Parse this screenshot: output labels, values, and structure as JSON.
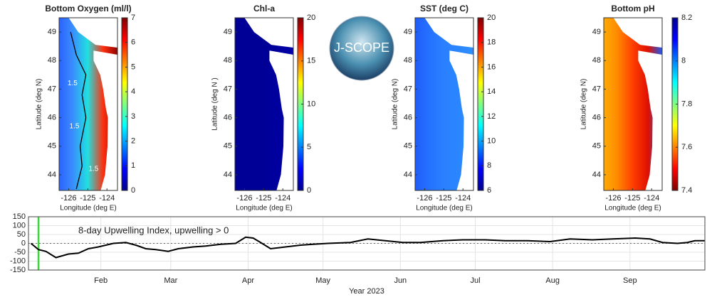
{
  "logo": {
    "text": "J-SCOPE"
  },
  "chart_data": [
    {
      "type": "map",
      "title": "Bottom Oxygen (ml/l)",
      "xlabel": "Longitude (deg E)",
      "ylabel": "Latitude (deg N)",
      "xlim": [
        -126.5,
        -123.45
      ],
      "ylim": [
        43.45,
        49.5
      ],
      "xticks": [
        -126,
        -125,
        -124
      ],
      "yticks": [
        44,
        45,
        46,
        47,
        48,
        49
      ],
      "colormap": "jet",
      "reverse": false,
      "clim": [
        0,
        7
      ],
      "cticks": [
        0,
        1,
        2,
        3,
        4,
        5,
        6,
        7
      ],
      "ocean": [
        "#2a5cff",
        "#3a8cff",
        "#20e0e0",
        "#ff3010",
        "#8a0000"
      ],
      "contour": {
        "value": 1.5
      }
    },
    {
      "type": "map",
      "title": "Chl-a",
      "xlabel": "Longitude (deg E)",
      "ylabel": "Latitude (deg N )",
      "xlim": [
        -126.5,
        -123.45
      ],
      "ylim": [
        43.45,
        49.5
      ],
      "xticks": [
        -126,
        -125,
        -124
      ],
      "yticks": [
        44,
        45,
        46,
        47,
        48,
        49
      ],
      "colormap": "jet",
      "reverse": false,
      "clim": [
        0,
        20
      ],
      "cticks": [
        0,
        5,
        10,
        15,
        20
      ],
      "ocean": [
        "#000096",
        "#000096",
        "#000096",
        "#0000a0",
        "#0000aa"
      ]
    },
    {
      "type": "map",
      "title": "SST (deg C)",
      "xlabel": "Longitude (deg E)",
      "ylabel": "Latitude (deg N)",
      "xlim": [
        -126.5,
        -123.45
      ],
      "ylim": [
        43.45,
        49.5
      ],
      "xticks": [
        -126,
        -125,
        -124
      ],
      "yticks": [
        44,
        45,
        46,
        47,
        48,
        49
      ],
      "colormap": "jet",
      "reverse": false,
      "clim": [
        6,
        20
      ],
      "cticks": [
        6,
        8,
        10,
        12,
        14,
        16,
        18,
        20
      ],
      "ocean": [
        "#1f5af5",
        "#2470ff",
        "#2a80ff",
        "#2a86ff",
        "#3090ff"
      ]
    },
    {
      "type": "map",
      "title": "Bottom pH",
      "xlabel": "Longitude (deg E)",
      "ylabel": "Latitude (deg N)",
      "xlim": [
        -126.5,
        -123.45
      ],
      "ylim": [
        43.45,
        49.5
      ],
      "xticks": [
        -126,
        -125,
        -124
      ],
      "yticks": [
        44,
        45,
        46,
        47,
        48,
        49
      ],
      "colormap": "jet",
      "reverse": true,
      "clim": [
        7.4,
        8.2
      ],
      "cticks": [
        7.4,
        7.6,
        7.8,
        8,
        8.2
      ],
      "ocean": [
        "#ffb000",
        "#ff8a00",
        "#ff4000",
        "#e01000",
        "#1060ff"
      ]
    },
    {
      "type": "line",
      "annotation": "8-day Upwelling Index, upwelling > 0",
      "xlabel": "Year 2023",
      "x": [
        4,
        7,
        10,
        14,
        19,
        23,
        27,
        31,
        37,
        42,
        46,
        50,
        54,
        59,
        63,
        69,
        74,
        80,
        86,
        90,
        93,
        96,
        100,
        106,
        112,
        117,
        123,
        132,
        139,
        146,
        153,
        160,
        169,
        177,
        186,
        194,
        203,
        212,
        220,
        229,
        237,
        246,
        252,
        257,
        263,
        267,
        270,
        274
      ],
      "values": [
        0,
        -35,
        -45,
        -80,
        -60,
        -55,
        -30,
        -20,
        0,
        5,
        -10,
        -30,
        -35,
        -45,
        -30,
        -20,
        -15,
        -5,
        0,
        35,
        30,
        5,
        -30,
        -20,
        -10,
        -5,
        0,
        5,
        25,
        15,
        5,
        5,
        15,
        20,
        20,
        15,
        15,
        10,
        25,
        20,
        25,
        30,
        25,
        5,
        0,
        5,
        15,
        15
      ],
      "color": "#000000",
      "xlim": [
        3,
        274
      ],
      "ylim": [
        -150,
        150
      ],
      "yticks": [
        150,
        100,
        50,
        0,
        -50,
        -100,
        -150
      ],
      "xticks": [
        {
          "value": 32,
          "label": "Feb"
        },
        {
          "value": 60,
          "label": "Mar"
        },
        {
          "value": 91,
          "label": "Apr"
        },
        {
          "value": 121,
          "label": "May"
        },
        {
          "value": 152,
          "label": "Jun"
        },
        {
          "value": 182,
          "label": "Jul"
        },
        {
          "value": 213,
          "label": "Aug"
        },
        {
          "value": 244,
          "label": "Sep"
        }
      ],
      "grid": true,
      "zero_line": true,
      "marker": {
        "x": 7,
        "color": "#33dd33"
      }
    }
  ]
}
